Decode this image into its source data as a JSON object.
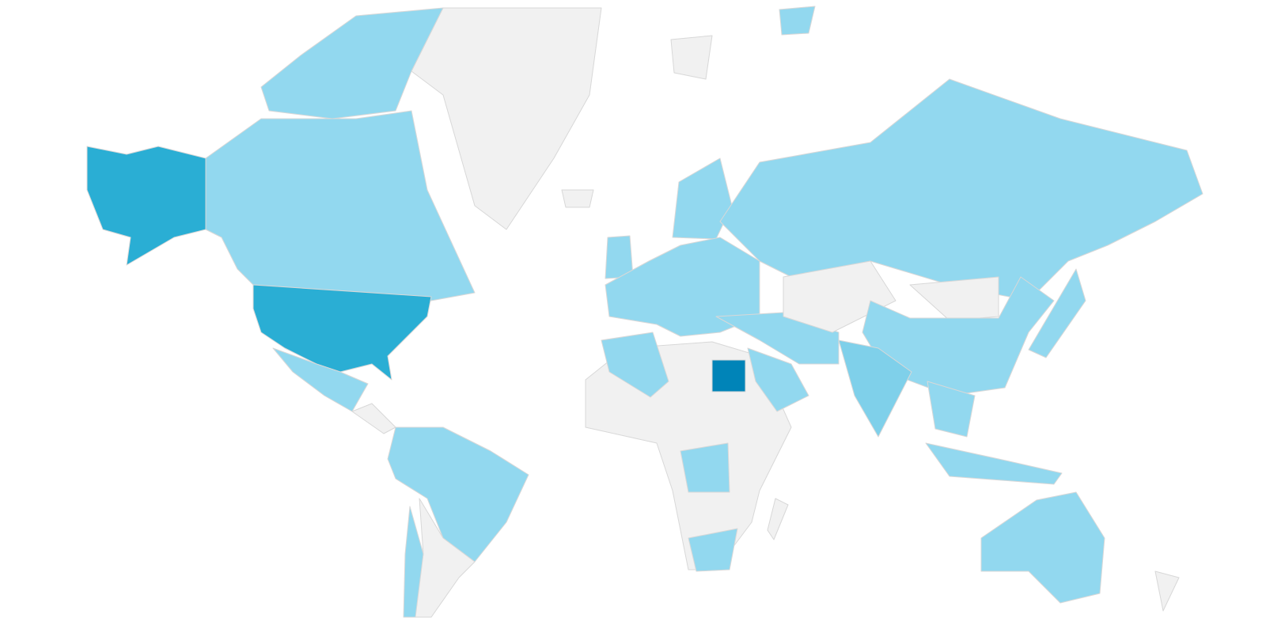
{
  "map": {
    "type": "choropleth",
    "colors": {
      "none": "#f1f1f1",
      "low": "#92d8ef",
      "medium_low": "#7fd0ea",
      "medium": "#2aaed4",
      "high": "#0084b8"
    },
    "regions": {
      "greenland": "none",
      "canada": "low",
      "alaska": "medium",
      "usa": "medium",
      "mexico": "low",
      "central-america": "none",
      "northern-south-america": "low",
      "southern-cone": "none",
      "chile": "low",
      "europe": "low",
      "scandinavia": "low",
      "uk": "low",
      "iceland": "none",
      "svalbard": "none",
      "arctic-islands": "low",
      "russia": "low",
      "africa": "none",
      "north-africa": "low",
      "egypt": "high",
      "dr-congo": "low",
      "south-africa": "low",
      "madagascar": "none",
      "saudi-arabia": "low",
      "iran-turkey": "low",
      "central-asia": "none",
      "mongolia": "none",
      "china": "low",
      "india": "medium_low",
      "southeast-asia": "low",
      "indonesia": "low",
      "japan": "low",
      "australia": "low",
      "new-zealand": "none",
      "canadian-arctic": "low"
    }
  }
}
